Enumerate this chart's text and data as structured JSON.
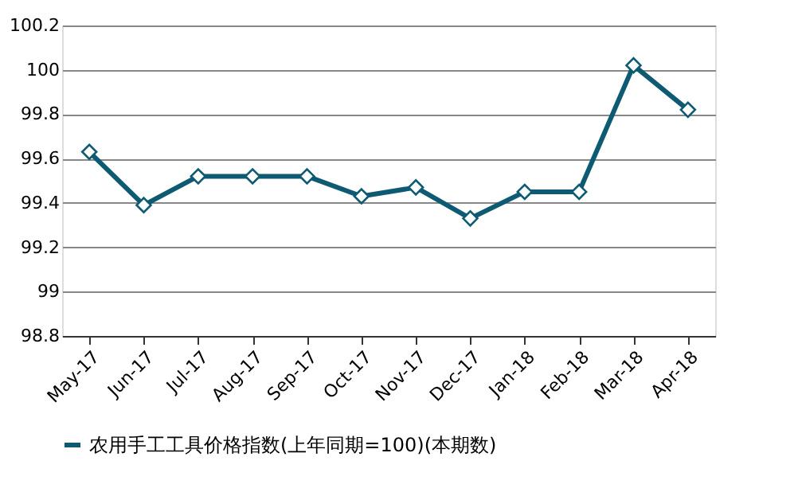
{
  "chart_data": {
    "type": "line",
    "categories": [
      "May-17",
      "Jun-17",
      "Jul-17",
      "Aug-17",
      "Sep-17",
      "Oct-17",
      "Nov-17",
      "Dec-17",
      "Jan-18",
      "Feb-18",
      "Mar-18",
      "Apr-18"
    ],
    "series": [
      {
        "name": "农用手工工具价格指数(上年同期=100)(本期数)",
        "color": "#0e5a73",
        "values": [
          99.63,
          99.39,
          99.52,
          99.52,
          99.52,
          99.43,
          99.47,
          99.33,
          99.45,
          99.45,
          100.02,
          99.82
        ]
      }
    ],
    "ylim": [
      98.8,
      100.2
    ],
    "yticks": [
      98.8,
      99,
      99.2,
      99.4,
      99.6,
      99.8,
      100,
      100.2
    ],
    "grid": "y",
    "legend": "bottom",
    "marker": "diamond",
    "line_style": "solid"
  }
}
